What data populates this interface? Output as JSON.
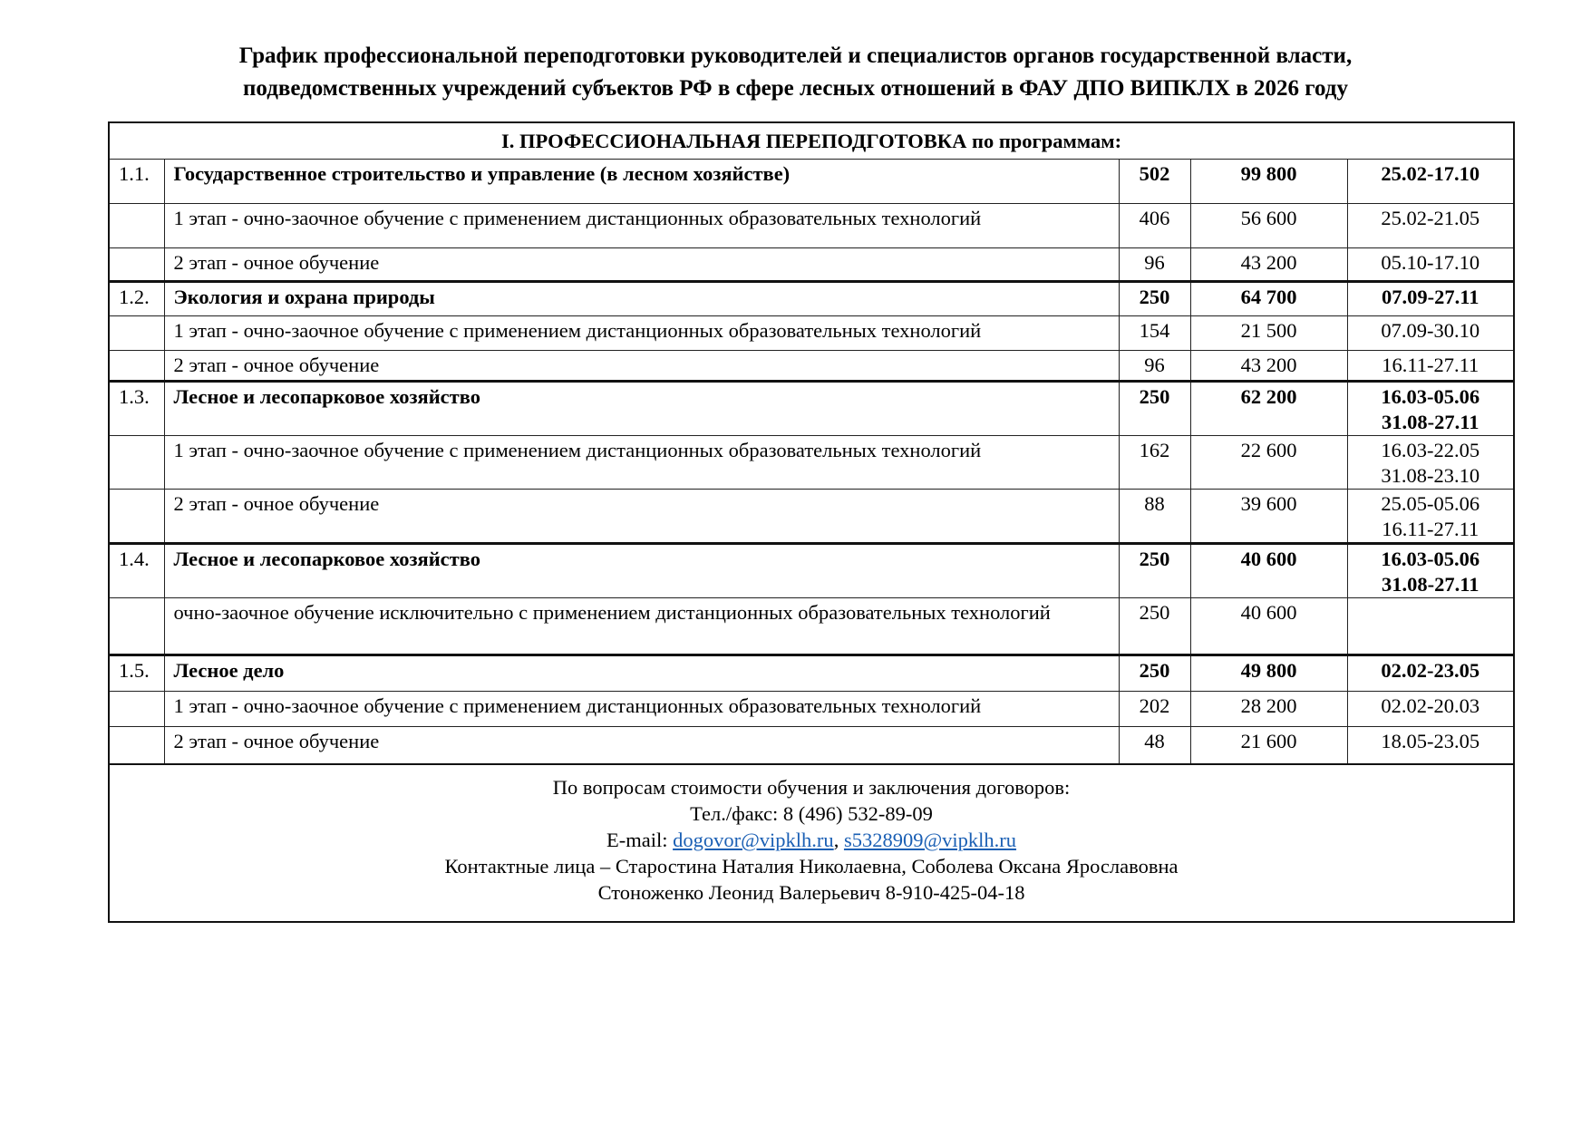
{
  "title": {
    "line1": "График профессиональной переподготовки руководителей и специалистов органов государственной власти,",
    "line2": "подведомственных учреждений субъектов РФ в сфере лесных отношений в ФАУ ДПО ВИПКЛХ в 2026 году"
  },
  "table": {
    "section_header": "I. ПРОФЕССИОНАЛЬНАЯ ПЕРЕПОДГОТОВКА по программам:",
    "rows": [
      {
        "num": "1.1.",
        "name": "Государственное строительство и управление (в лесном хозяйстве)",
        "hours": "502",
        "price": "99 800",
        "dates": "25.02-17.10",
        "main": true,
        "h": 49
      },
      {
        "num": "",
        "name": "1 этап - очно-заочное обучение с применением дистанционных образовательных технологий",
        "hours": "406",
        "price": "56 600",
        "dates": "25.02-21.05",
        "main": false,
        "h": 49
      },
      {
        "num": "",
        "name": "2 этап - очное обучение",
        "hours": "96",
        "price": "43 200",
        "dates": "05.10-17.10",
        "main": false,
        "h": 37
      },
      {
        "num": "1.2.",
        "name": "Экология и охрана природы",
        "hours": "250",
        "price": "64 700",
        "dates": "07.09-27.11",
        "main": true,
        "h": 38
      },
      {
        "num": "",
        "name": "1 этап - очно-заочное обучение с применением дистанционных образовательных технологий",
        "hours": "154",
        "price": "21 500",
        "dates": "07.09-30.10",
        "main": false,
        "h": 38
      },
      {
        "num": "",
        "name": "2 этап - очное обучение",
        "hours": "96",
        "price": "43 200",
        "dates": "16.11-27.11",
        "main": false,
        "h": 34
      },
      {
        "num": "1.3.",
        "name": "Лесное и лесопарковое хозяйство",
        "hours": "250",
        "price": "62 200",
        "dates": "16.03-05.06\n31.08-27.11",
        "main": true,
        "h": 59
      },
      {
        "num": "",
        "name": "1 этап - очно-заочное обучение с применением дистанционных образовательных технологий",
        "hours": "162",
        "price": "22 600",
        "dates": "16.03-22.05\n31.08-23.10",
        "main": false,
        "h": 59
      },
      {
        "num": "",
        "name": "2 этап - очное обучение",
        "hours": "88",
        "price": "39 600",
        "dates": "25.05-05.06\n16.11-27.11",
        "main": false,
        "h": 59
      },
      {
        "num": "1.4.",
        "name": "Лесное и лесопарковое хозяйство",
        "hours": "250",
        "price": "40 600",
        "dates": "16.03-05.06\n31.08-27.11",
        "main": true,
        "h": 59
      },
      {
        "num": "",
        "name": "очно-заочное обучение исключительно с применением дистанционных образовательных технологий",
        "hours": "250",
        "price": "40 600",
        "dates": "",
        "main": false,
        "h": 63
      },
      {
        "num": "1.5.",
        "name": "Лесное дело",
        "hours": "250",
        "price": "49 800",
        "dates": "02.02-23.05",
        "main": true,
        "h": 40
      },
      {
        "num": "",
        "name": "1 этап - очно-заочное обучение с применением дистанционных образовательных технологий",
        "hours": "202",
        "price": "28 200",
        "dates": "02.02-20.03",
        "main": false,
        "h": 39
      },
      {
        "num": "",
        "name": "2 этап - очное обучение",
        "hours": "48",
        "price": "21 600",
        "dates": "18.05-23.05",
        "main": false,
        "h": 42
      }
    ]
  },
  "footer": {
    "line1": "По вопросам стоимости обучения и заключения договоров:",
    "phone": "Тел./факс: 8 (496) 532-89-09",
    "email_label": "E-mail: ",
    "email1": "dogovor@vipklh.ru",
    "email_sep": ", ",
    "email2": "s5328909@vipklh.ru",
    "contacts": "Контактные лица – Старостина Наталия Николаевна, Соболева Оксана Ярославовна",
    "contact2": "Стоноженко Леонид Валерьевич 8-910-425-04-18"
  },
  "colors": {
    "link": "#1a5fb4"
  }
}
